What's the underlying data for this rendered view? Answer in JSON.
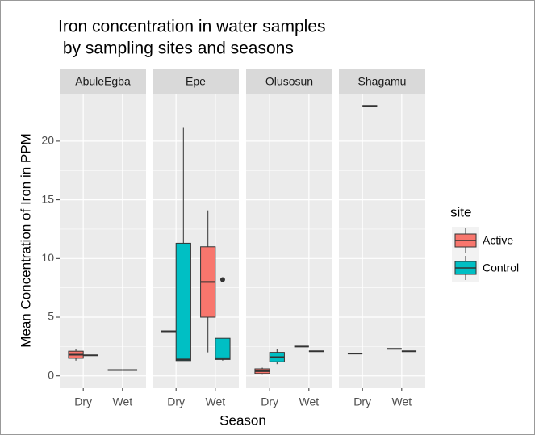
{
  "chart_data": {
    "type": "boxplot",
    "title": [
      "Iron concentration in water samples",
      " by sampling sites and seasons"
    ],
    "x_label": "Season",
    "y_label": "Mean Concentration of Iron in PPM",
    "facets": [
      "AbuleEgba",
      "Epe",
      "Olusosun",
      "Shagamu"
    ],
    "categories": [
      "Dry",
      "Wet"
    ],
    "legend_title": "site",
    "legend_position": "right",
    "grid": true,
    "ylim": [
      -1.05,
      24.05
    ],
    "yticks": [
      0,
      5,
      10,
      15,
      20
    ],
    "series": [
      {
        "name": "Active",
        "color": "#F8766D",
        "boxes": [
          [
            {
              "whislo": 1.3,
              "q1": 1.5,
              "med": 1.8,
              "q3": 2.1,
              "whishi": 2.3
            },
            {
              "whislo": 0.5,
              "q1": 0.5,
              "med": 0.5,
              "q3": 0.5,
              "whishi": 0.5
            }
          ],
          [
            {
              "whislo": 3.8,
              "q1": 3.8,
              "med": 3.8,
              "q3": 3.8,
              "whishi": 3.8
            },
            {
              "whislo": 2.0,
              "q1": 5.0,
              "med": 8.0,
              "q3": 11.0,
              "whishi": 14.1
            }
          ],
          [
            {
              "whislo": 0.1,
              "q1": 0.2,
              "med": 0.4,
              "q3": 0.6,
              "whishi": 0.7
            },
            {
              "whislo": 2.5,
              "q1": 2.5,
              "med": 2.5,
              "q3": 2.5,
              "whishi": 2.5
            }
          ],
          [
            {
              "whislo": 1.9,
              "q1": 1.9,
              "med": 1.9,
              "q3": 1.9,
              "whishi": 1.9
            },
            {
              "whislo": 2.3,
              "q1": 2.3,
              "med": 2.3,
              "q3": 2.3,
              "whishi": 2.3
            }
          ]
        ]
      },
      {
        "name": "Control",
        "color": "#00BFC4",
        "boxes": [
          [
            {
              "whislo": 1.75,
              "q1": 1.75,
              "med": 1.75,
              "q3": 1.75,
              "whishi": 1.75
            },
            {
              "whislo": 0.5,
              "q1": 0.5,
              "med": 0.5,
              "q3": 0.5,
              "whishi": 0.5
            }
          ],
          [
            {
              "whislo": 1.3,
              "q1": 1.3,
              "med": 1.4,
              "q3": 11.3,
              "whishi": 21.2
            },
            {
              "whislo": 1.3,
              "q1": 1.4,
              "med": 1.5,
              "q3": 3.2,
              "whishi": 3.2,
              "outliers": [
                8.2
              ]
            }
          ],
          [
            {
              "whislo": 1.0,
              "q1": 1.2,
              "med": 1.6,
              "q3": 2.0,
              "whishi": 2.3
            },
            {
              "whislo": 2.1,
              "q1": 2.1,
              "med": 2.1,
              "q3": 2.1,
              "whishi": 2.1
            }
          ],
          [
            {
              "whislo": 23.0,
              "q1": 23.0,
              "med": 23.0,
              "q3": 23.0,
              "whishi": 23.0
            },
            {
              "whislo": 2.1,
              "q1": 2.1,
              "med": 2.1,
              "q3": 2.1,
              "whishi": 2.1
            }
          ]
        ]
      }
    ]
  }
}
